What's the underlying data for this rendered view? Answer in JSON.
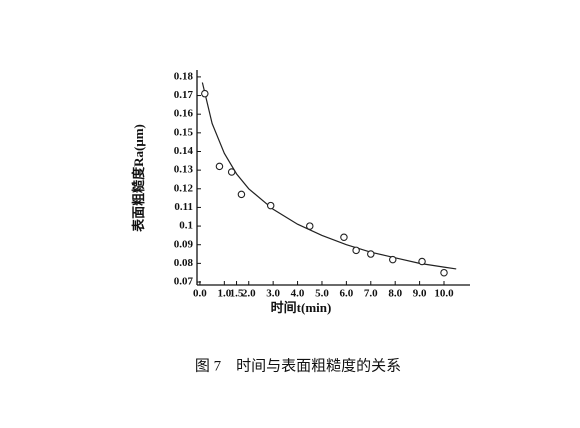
{
  "chart_data": {
    "type": "scatter",
    "title": "图 7　时间与表面粗糙度的关系",
    "x_label": "时间t(min)",
    "y_label": "表面粗糙度Ra(μm)",
    "xlim": [
      -0.12,
      10.86
    ],
    "ylim": [
      0.0684,
      0.1837
    ],
    "xticks": [
      {
        "value": 0,
        "label": "0.0"
      },
      {
        "value": 1,
        "label": "1.0"
      },
      {
        "value": 1.5,
        "label": "1.5"
      },
      {
        "value": 2,
        "label": "2.0"
      },
      {
        "value": 3,
        "label": "3.0"
      },
      {
        "value": 4,
        "label": "4.0"
      },
      {
        "value": 5,
        "label": "5.0"
      },
      {
        "value": 6,
        "label": "6.0"
      },
      {
        "value": 7,
        "label": "7.0"
      },
      {
        "value": 8,
        "label": "8.0"
      },
      {
        "value": 9,
        "label": "9.0"
      },
      {
        "value": 10,
        "label": "10.0"
      }
    ],
    "yticks": [
      0.07,
      0.08,
      0.09,
      0.1,
      0.11,
      0.12,
      0.13,
      0.14,
      0.15,
      0.16,
      0.17,
      0.18
    ],
    "color": "#222222",
    "points": {
      "x": [
        0.2,
        0.8,
        1.3,
        1.7,
        2.9,
        4.5,
        5.9,
        6.4,
        7.0,
        7.9,
        9.1,
        10.0
      ],
      "values": [
        0.171,
        0.132,
        0.129,
        0.117,
        0.111,
        0.1,
        0.094,
        0.087,
        0.085,
        0.082,
        0.081,
        0.075
      ]
    },
    "fit": {
      "x": [
        0.1,
        0.5,
        1,
        1.5,
        2,
        3,
        4,
        5,
        6,
        7,
        8,
        9,
        10,
        10.5
      ],
      "values": [
        0.177,
        0.155,
        0.139,
        0.128,
        0.12,
        0.109,
        0.101,
        0.095,
        0.09,
        0.086,
        0.083,
        0.08,
        0.078,
        0.077
      ]
    }
  }
}
